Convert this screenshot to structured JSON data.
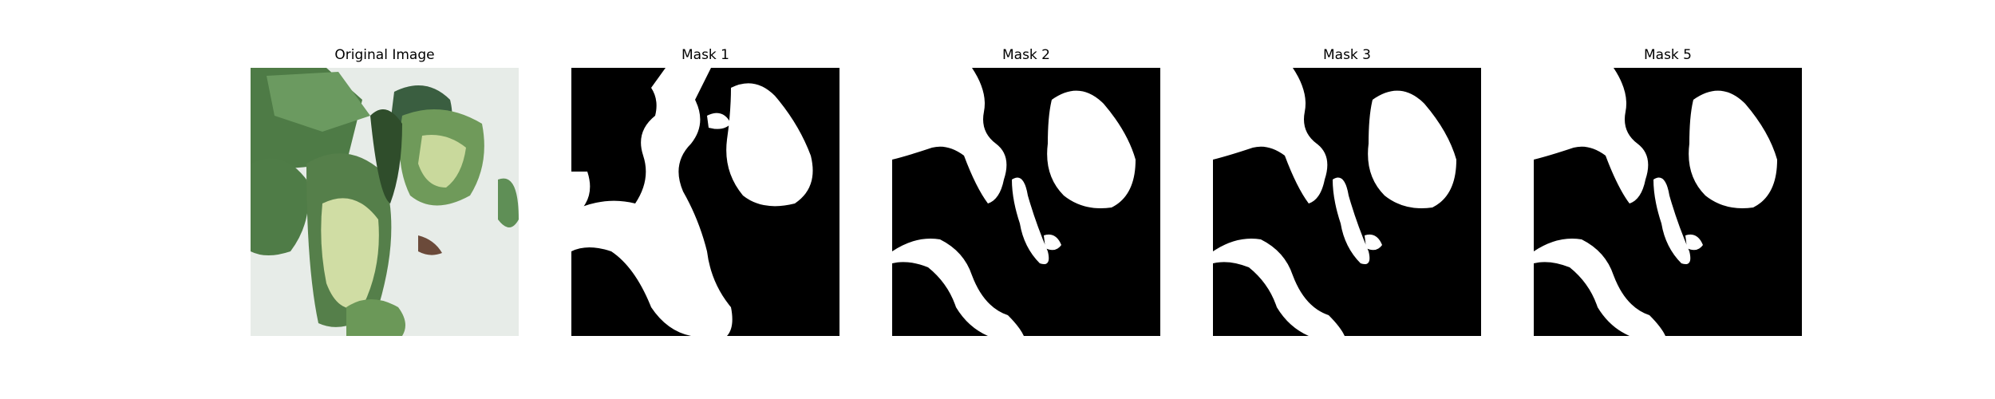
{
  "figure": {
    "panels": [
      {
        "title": "Original Image",
        "kind": "photo",
        "subject": "plant-leaves"
      },
      {
        "title": "Mask 1",
        "kind": "mask"
      },
      {
        "title": "Mask 2",
        "kind": "mask"
      },
      {
        "title": "Mask 3",
        "kind": "mask"
      },
      {
        "title": "Mask 5",
        "kind": "mask"
      }
    ]
  },
  "colors": {
    "background": "#ffffff",
    "mask_foreground": "#ffffff",
    "mask_background": "#000000",
    "leaf_dark": "#3f6b3a",
    "leaf_mid": "#5f8f56",
    "leaf_light": "#c7d69a",
    "photo_bg": "#e7ece8"
  }
}
